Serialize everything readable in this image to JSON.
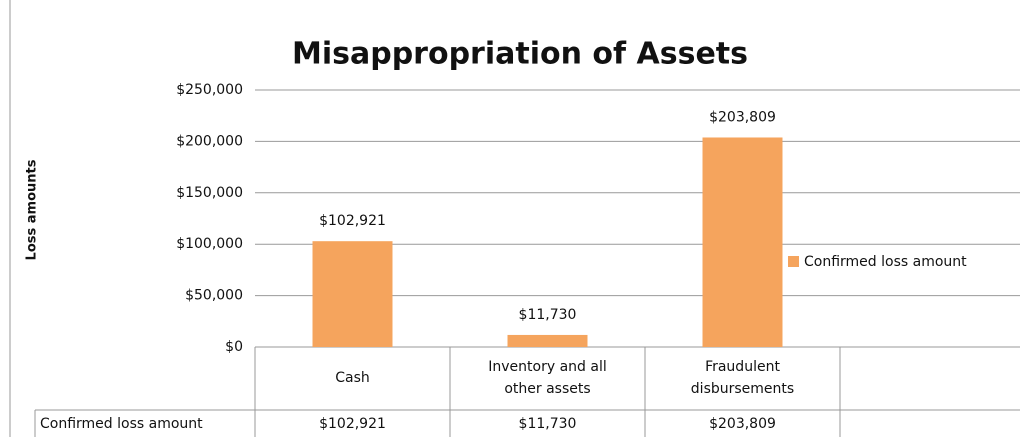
{
  "chart_data": {
    "type": "bar",
    "title": "Misappropriation of Assets",
    "y_label": "Loss amounts",
    "categories": [
      "Cash",
      "Inventory and all other assets",
      "Fraudulent disbursements"
    ],
    "series": [
      {
        "name": "Confirmed loss amount",
        "color": "#f5a45d",
        "values": [
          102921,
          11730,
          203809
        ],
        "value_labels": [
          "$102,921",
          "$11,730",
          "$203,809"
        ]
      }
    ],
    "ylim": [
      0,
      250000
    ],
    "yticks": [
      {
        "value": 0,
        "label": "$0"
      },
      {
        "value": 50000,
        "label": "$50,000"
      },
      {
        "value": 100000,
        "label": "$100,000"
      },
      {
        "value": 150000,
        "label": "$150,000"
      },
      {
        "value": 200000,
        "label": "$200,000"
      },
      {
        "value": 250000,
        "label": "$250,000"
      }
    ],
    "grid": true,
    "legend": "right",
    "data_table": true
  }
}
